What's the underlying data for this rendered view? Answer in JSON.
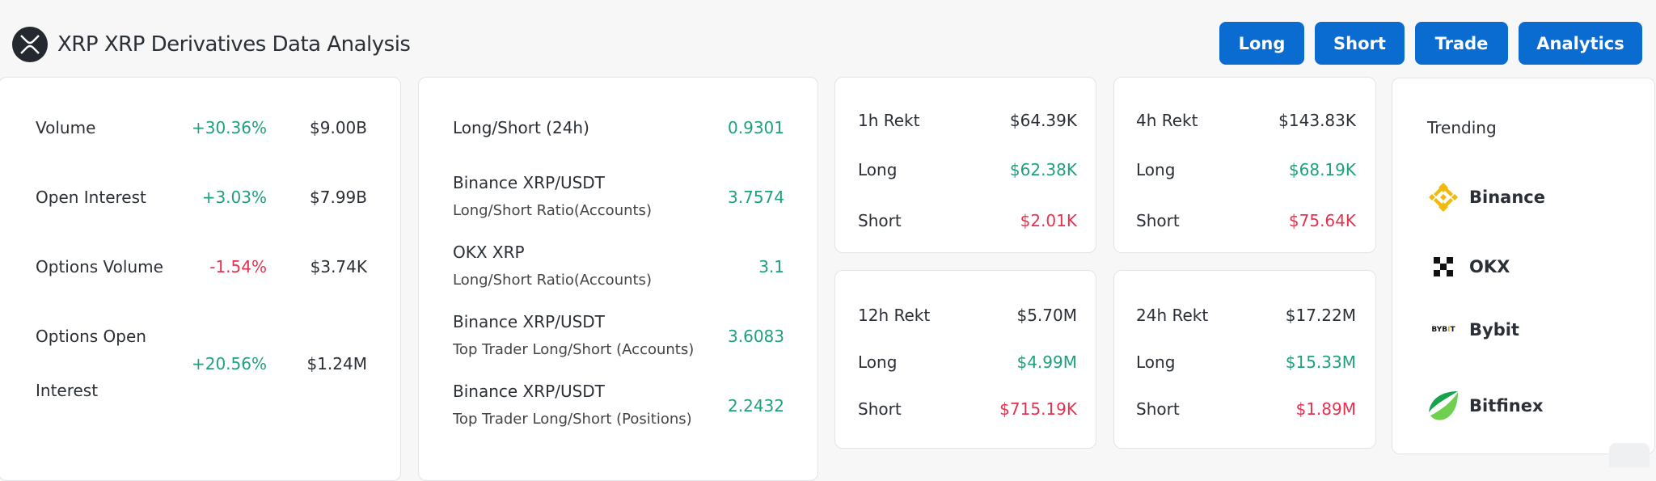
{
  "header": {
    "title": "XRP XRP Derivatives Data Analysis",
    "logo_icon": "xrp-logo-icon",
    "buttons": [
      "Long",
      "Short",
      "Trade",
      "Analytics"
    ],
    "button_color": "#0a6bd1"
  },
  "colors": {
    "positive": "#1fa07f",
    "negative": "#e5334f"
  },
  "overview": [
    {
      "label": "Volume",
      "change": "+30.36%",
      "value": "$9.00B"
    },
    {
      "label": "Open Interest",
      "change": "+3.03%",
      "value": "$7.99B"
    },
    {
      "label": "Options Volume",
      "change": "-1.54%",
      "value": "$3.74K"
    },
    {
      "label_line1": "Options Open",
      "label_line2": "Interest",
      "change": "+20.56%",
      "value": "$1.24M"
    }
  ],
  "ratios": [
    {
      "label": "Long/Short (24h)",
      "value": "0.9301"
    },
    {
      "label": "Binance XRP/USDT",
      "sub": "Long/Short Ratio(Accounts)",
      "value": "3.7574"
    },
    {
      "label": "OKX XRP",
      "sub": "Long/Short Ratio(Accounts)",
      "value": "3.1"
    },
    {
      "label": "Binance XRP/USDT",
      "sub": "Top Trader Long/Short (Accounts)",
      "value": "3.6083"
    },
    {
      "label": "Binance XRP/USDT",
      "sub": "Top Trader Long/Short (Positions)",
      "value": "2.2432"
    }
  ],
  "rekt": [
    {
      "label": "1h Rekt",
      "total": "$64.39K",
      "long_label": "Long",
      "long": "$62.38K",
      "short_label": "Short",
      "short": "$2.01K"
    },
    {
      "label": "4h Rekt",
      "total": "$143.83K",
      "long_label": "Long",
      "long": "$68.19K",
      "short_label": "Short",
      "short": "$75.64K"
    },
    {
      "label": "12h Rekt",
      "total": "$5.70M",
      "long_label": "Long",
      "long": "$4.99M",
      "short_label": "Short",
      "short": "$715.19K"
    },
    {
      "label": "24h Rekt",
      "total": "$17.22M",
      "long_label": "Long",
      "long": "$15.33M",
      "short_label": "Short",
      "short": "$1.89M"
    }
  ],
  "trending": {
    "title": "Trending",
    "items": [
      {
        "name": "Binance",
        "icon": "binance-logo-icon"
      },
      {
        "name": "OKX",
        "icon": "okx-logo-icon"
      },
      {
        "name": "Bybit",
        "icon": "bybit-logo-icon",
        "logo_text": "BYBIT"
      },
      {
        "name": "Bitfinex",
        "icon": "bitfinex-logo-icon"
      }
    ]
  }
}
